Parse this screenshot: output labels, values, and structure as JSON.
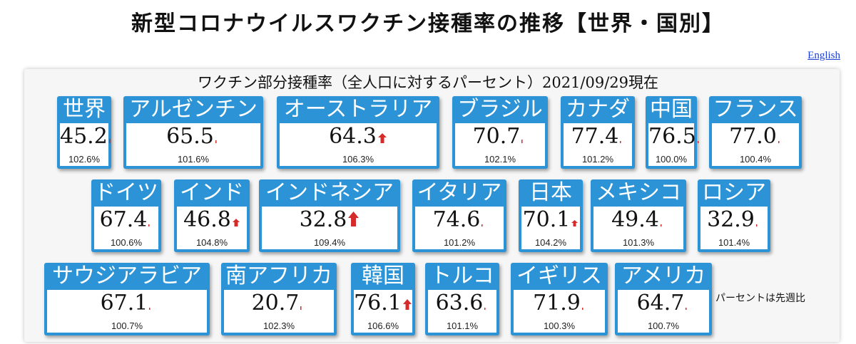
{
  "page": {
    "title": "新型コロナウイルスワクチン接種率の推移【世界・国別】",
    "lang_link": "English",
    "subtitle": "ワクチン部分接種率（全人口に対するパーセント）2021/09/29現在",
    "note": "パーセントは先週比",
    "colors": {
      "card_header": "#2b93d6",
      "up_arrow": "#d62b2b",
      "link": "#1a3fd6"
    }
  },
  "cards": [
    {
      "name": "世界",
      "value": "45.2",
      "pct": "102.6%",
      "change": 2.6
    },
    {
      "name": "アルゼンチン",
      "value": "65.5",
      "pct": "101.6%",
      "change": 1.6
    },
    {
      "name": "オーストラリア",
      "value": "64.3",
      "pct": "106.3%",
      "change": 6.3
    },
    {
      "name": "ブラジル",
      "value": "70.7",
      "pct": "102.1%",
      "change": 2.1
    },
    {
      "name": "カナダ",
      "value": "77.4",
      "pct": "101.2%",
      "change": 1.2
    },
    {
      "name": "中国",
      "value": "76.5",
      "pct": "100.0%",
      "change": 0.0
    },
    {
      "name": "フランス",
      "value": "77.0",
      "pct": "100.4%",
      "change": 0.4
    },
    {
      "name": "ドイツ",
      "value": "67.4",
      "pct": "100.6%",
      "change": 0.6
    },
    {
      "name": "インド",
      "value": "46.8",
      "pct": "104.8%",
      "change": 4.8
    },
    {
      "name": "インドネシア",
      "value": "32.8",
      "pct": "109.4%",
      "change": 9.4
    },
    {
      "name": "イタリア",
      "value": "74.6",
      "pct": "101.2%",
      "change": 1.2
    },
    {
      "name": "日本",
      "value": "70.1",
      "pct": "104.2%",
      "change": 4.2
    },
    {
      "name": "メキシコ",
      "value": "49.4",
      "pct": "101.3%",
      "change": 1.3
    },
    {
      "name": "ロシア",
      "value": "32.9",
      "pct": "101.4%",
      "change": 1.4
    },
    {
      "name": "サウジアラビア",
      "value": "67.1",
      "pct": "100.7%",
      "change": 0.7
    },
    {
      "name": "南アフリカ",
      "value": "20.7",
      "pct": "102.3%",
      "change": 2.3
    },
    {
      "name": "韓国",
      "value": "76.1",
      "pct": "106.6%",
      "change": 6.6
    },
    {
      "name": "トルコ",
      "value": "63.6",
      "pct": "101.1%",
      "change": 1.1
    },
    {
      "name": "イギリス",
      "value": "71.9",
      "pct": "100.3%",
      "change": 0.3
    },
    {
      "name": "アメリカ",
      "value": "64.7",
      "pct": "100.7%",
      "change": 0.7
    }
  ]
}
